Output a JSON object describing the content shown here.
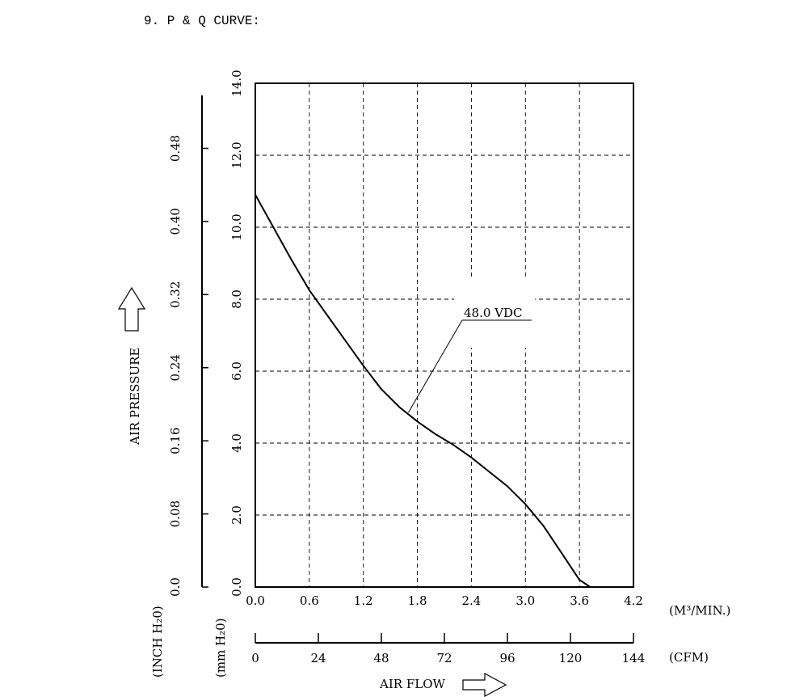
{
  "heading": "9. P & Q CURVE:",
  "chart_data": {
    "type": "line",
    "xlabel": "AIR FLOW",
    "ylabel": "AIR PRESSURE",
    "xlim": [
      0,
      4.2
    ],
    "ylim": [
      0,
      14
    ],
    "x_ticks": [
      "0.0",
      "0.6",
      "1.2",
      "1.8",
      "2.4",
      "3.0",
      "3.6",
      "4.2"
    ],
    "y_ticks": [
      "0.0",
      "2.0",
      "4.0",
      "6.0",
      "8.0",
      "10.0",
      "12.0",
      "14.0"
    ],
    "x_unit": "(M³/MIN.)",
    "y_unit": "(mm H₂0)",
    "secondary_x": {
      "ticks": [
        "0",
        "24",
        "48",
        "72",
        "96",
        "120",
        "144"
      ],
      "unit": "(CFM)",
      "max": 144
    },
    "secondary_y": {
      "ticks": [
        "0.0",
        "0.08",
        "0.16",
        "0.24",
        "0.32",
        "0.40",
        "0.48"
      ],
      "unit": "(INCH H₂0)",
      "max": 0.5512
    },
    "grid": true,
    "series": [
      {
        "name": "48.0 VDC",
        "x": [
          0.0,
          0.2,
          0.4,
          0.6,
          0.8,
          1.0,
          1.2,
          1.4,
          1.6,
          1.8,
          2.0,
          2.2,
          2.4,
          2.6,
          2.8,
          3.0,
          3.2,
          3.4,
          3.6,
          3.72
        ],
        "y": [
          10.9,
          10.0,
          9.1,
          8.25,
          7.55,
          6.85,
          6.15,
          5.5,
          5.0,
          4.6,
          4.25,
          3.95,
          3.6,
          3.2,
          2.8,
          2.3,
          1.7,
          0.95,
          0.2,
          0.0
        ]
      }
    ],
    "annotation": {
      "text": "48.0 VDC",
      "at_x": 1.7,
      "at_y": 4.85
    }
  }
}
